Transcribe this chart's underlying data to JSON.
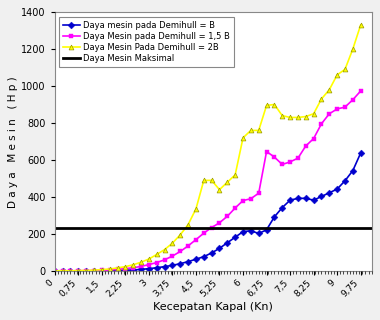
{
  "title": "",
  "xlabel": "Kecepatan Kapal (Kn)",
  "ylabel": "D a y a   M e s i n   ( H p )",
  "xlim": [
    0,
    10.1
  ],
  "ylim": [
    0,
    1400
  ],
  "yticks": [
    0,
    200,
    400,
    600,
    800,
    1000,
    1200,
    1400
  ],
  "xtick_labels": [
    "0",
    "0,75",
    "1,5",
    "2,25",
    "3",
    "3,75",
    "4,5",
    "5,25",
    "6",
    "6,75",
    "7,5",
    "8,25",
    "9",
    "9,75"
  ],
  "xtick_values": [
    0,
    0.75,
    1.5,
    2.25,
    3,
    3.75,
    4.5,
    5.25,
    6,
    6.75,
    7.5,
    8.25,
    9,
    9.75
  ],
  "daya_mesin_maksimal": 235,
  "legend_labels": [
    "Daya mesin pada Demihull = B",
    "Daya Mesin pada Demihull = 1,5 B",
    "Daya Mesin Pada Demihull = 2B",
    "Daya Mesin Maksimal"
  ],
  "colors": {
    "B": "#0000CD",
    "1.5B": "#FF00FF",
    "2B": "#FFFF00",
    "max": "#000000"
  },
  "x_B": [
    0,
    0.25,
    0.5,
    0.75,
    1.0,
    1.25,
    1.5,
    1.75,
    2.0,
    2.25,
    2.5,
    2.75,
    3.0,
    3.25,
    3.5,
    3.75,
    4.0,
    4.25,
    4.5,
    4.75,
    5.0,
    5.25,
    5.5,
    5.75,
    6.0,
    6.25,
    6.5,
    6.75,
    7.0,
    7.25,
    7.5,
    7.75,
    8.0,
    8.25,
    8.5,
    8.75,
    9.0,
    9.25,
    9.5,
    9.75
  ],
  "y_B": [
    2,
    3,
    2,
    3,
    2,
    3,
    3,
    4,
    5,
    6,
    8,
    11,
    15,
    20,
    26,
    33,
    42,
    53,
    66,
    80,
    100,
    125,
    155,
    185,
    215,
    220,
    205,
    225,
    295,
    345,
    385,
    395,
    395,
    385,
    405,
    425,
    445,
    490,
    545,
    640
  ],
  "x_1p5B": [
    0,
    0.25,
    0.5,
    0.75,
    1.0,
    1.25,
    1.5,
    1.75,
    2.0,
    2.25,
    2.5,
    2.75,
    3.0,
    3.25,
    3.5,
    3.75,
    4.0,
    4.25,
    4.5,
    4.75,
    5.0,
    5.25,
    5.5,
    5.75,
    6.0,
    6.25,
    6.5,
    6.75,
    7.0,
    7.25,
    7.5,
    7.75,
    8.0,
    8.25,
    8.5,
    8.75,
    9.0,
    9.25,
    9.5,
    9.75
  ],
  "y_1p5B": [
    3,
    4,
    3,
    4,
    4,
    5,
    6,
    8,
    11,
    15,
    20,
    27,
    37,
    48,
    63,
    83,
    108,
    138,
    172,
    207,
    237,
    263,
    298,
    343,
    383,
    393,
    423,
    648,
    618,
    578,
    592,
    612,
    678,
    718,
    798,
    852,
    878,
    888,
    928,
    975
  ],
  "x_2B": [
    0,
    0.25,
    0.5,
    0.75,
    1.0,
    1.25,
    1.5,
    1.75,
    2.0,
    2.25,
    2.5,
    2.75,
    3.0,
    3.25,
    3.5,
    3.75,
    4.0,
    4.25,
    4.5,
    4.75,
    5.0,
    5.25,
    5.5,
    5.75,
    6.0,
    6.25,
    6.5,
    6.75,
    7.0,
    7.25,
    7.5,
    7.75,
    8.0,
    8.25,
    8.5,
    8.75,
    9.0,
    9.25,
    9.5,
    9.75
  ],
  "y_2B": [
    3,
    4,
    3,
    5,
    5,
    7,
    10,
    13,
    19,
    26,
    36,
    50,
    67,
    92,
    118,
    153,
    198,
    253,
    338,
    492,
    492,
    442,
    482,
    522,
    722,
    762,
    762,
    897,
    902,
    842,
    832,
    832,
    837,
    852,
    932,
    982,
    1062,
    1092,
    1202,
    1332
  ],
  "bg_color": "#f0f0f0",
  "plot_bg_color": "#ffffff",
  "marker_size": 3.5,
  "linewidth": 1.2
}
